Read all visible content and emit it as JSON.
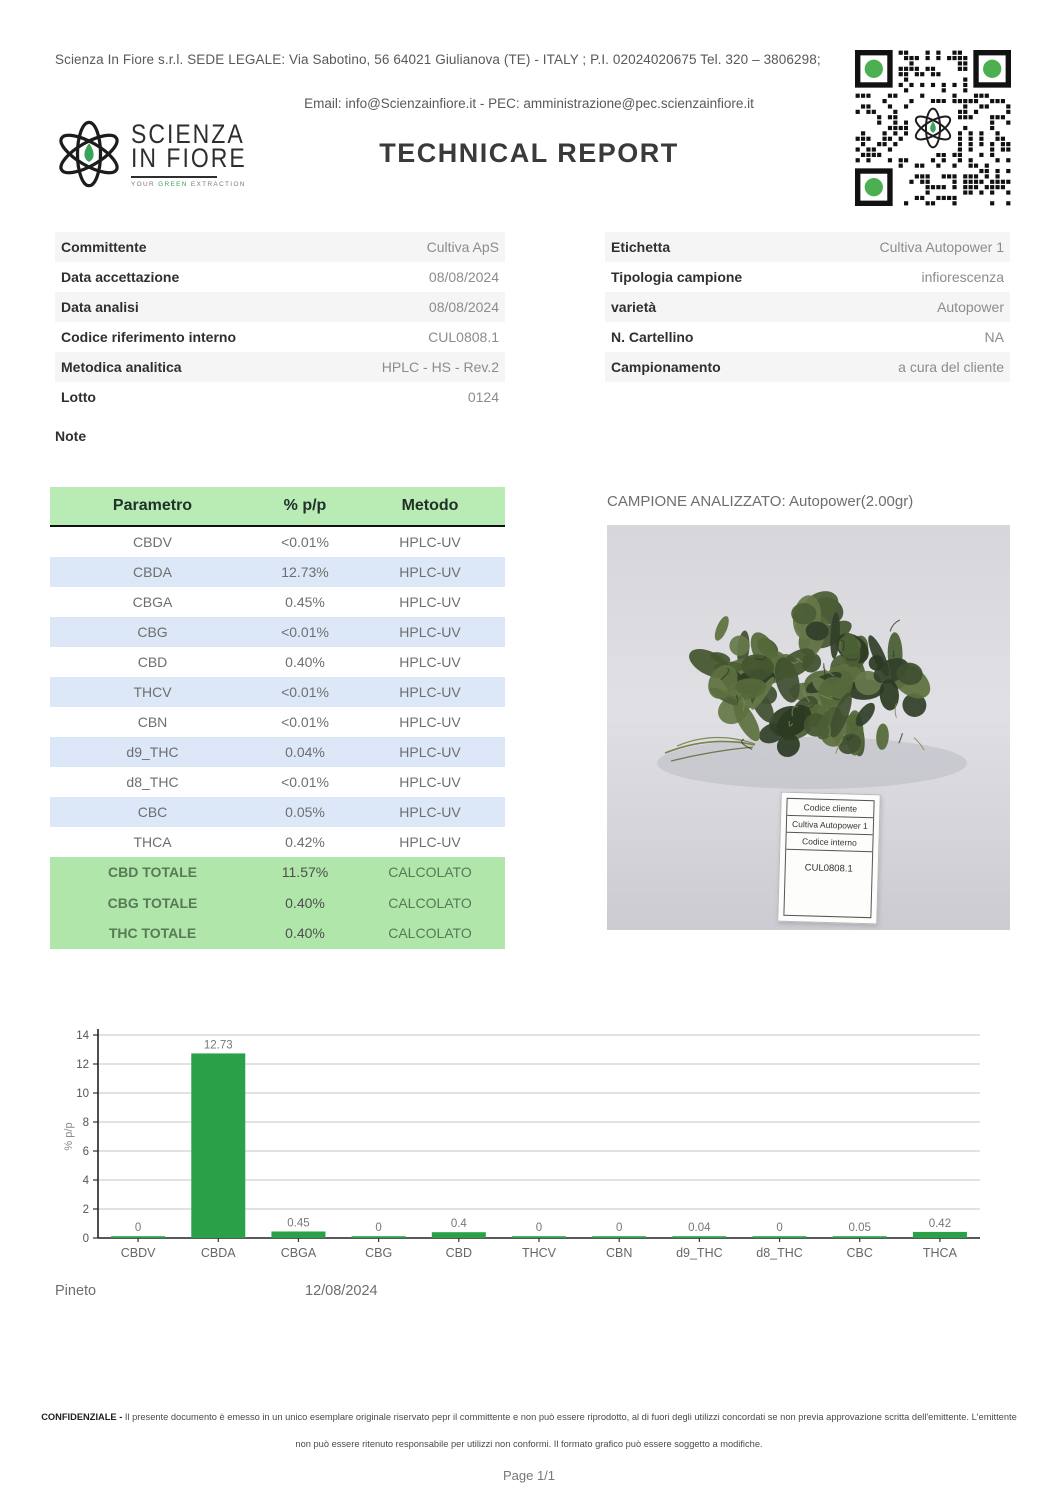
{
  "header": {
    "address": "Scienza In Fiore s.r.l. SEDE LEGALE: Via Sabotino, 56 64021 Giulianova (TE) - ITALY ; P.I. 02024020675 Tel. 320 – 3806298;",
    "email_line": "Email: info@Scienzainfiore.it - PEC: amministrazione@pec.scienzainfiore.it",
    "title": "TECHNICAL REPORT",
    "logo": {
      "line1": "SCIENZA",
      "line2": "IN FIORE",
      "tagline_pre": "YOUR ",
      "tagline_green": "GREEN",
      "tagline_post": " EXTRACTION"
    }
  },
  "info_left": [
    {
      "label": "Committente",
      "value": "Cultiva ApS"
    },
    {
      "label": "Data accettazione",
      "value": "08/08/2024"
    },
    {
      "label": "Data analisi",
      "value": "08/08/2024"
    },
    {
      "label": "Codice riferimento interno",
      "value": "CUL0808.1"
    },
    {
      "label": "Metodica analitica",
      "value": "HPLC - HS - Rev.2"
    },
    {
      "label": "Lotto",
      "value": "0124"
    }
  ],
  "info_right": [
    {
      "label": "Etichetta",
      "value": "Cultiva Autopower 1"
    },
    {
      "label": "Tipologia campione",
      "value": "infiorescenza"
    },
    {
      "label": "varietà",
      "value": "Autopower"
    },
    {
      "label": "N. Cartellino",
      "value": "NA"
    },
    {
      "label": "Campionamento",
      "value": "a cura del cliente"
    }
  ],
  "note_label": "Note",
  "results_table": {
    "headers": [
      "Parametro",
      "% p/p",
      "Metodo"
    ],
    "rows": [
      {
        "param": "CBDV",
        "value": "<0.01%",
        "method": "HPLC-UV"
      },
      {
        "param": "CBDA",
        "value": "12.73%",
        "method": "HPLC-UV"
      },
      {
        "param": "CBGA",
        "value": "0.45%",
        "method": "HPLC-UV"
      },
      {
        "param": "CBG",
        "value": "<0.01%",
        "method": "HPLC-UV"
      },
      {
        "param": "CBD",
        "value": "0.40%",
        "method": "HPLC-UV"
      },
      {
        "param": "THCV",
        "value": "<0.01%",
        "method": "HPLC-UV"
      },
      {
        "param": "CBN",
        "value": "<0.01%",
        "method": "HPLC-UV"
      },
      {
        "param": "d9_THC",
        "value": "0.04%",
        "method": "HPLC-UV"
      },
      {
        "param": "d8_THC",
        "value": "<0.01%",
        "method": "HPLC-UV"
      },
      {
        "param": "CBC",
        "value": "0.05%",
        "method": "HPLC-UV"
      },
      {
        "param": "THCA",
        "value": "0.42%",
        "method": "HPLC-UV"
      }
    ],
    "totals": [
      {
        "param": "CBD TOTALE",
        "value": "11.57%",
        "method": "CALCOLATO"
      },
      {
        "param": "CBG TOTALE",
        "value": "0.40%",
        "method": "CALCOLATO"
      },
      {
        "param": "THC TOTALE",
        "value": "0.40%",
        "method": "CALCOLATO"
      }
    ]
  },
  "sample": {
    "caption": "CAMPIONE ANALIZZATO: Autopower(2.00gr)",
    "label_card": {
      "row1": "Codice cliente",
      "row2": "Cultiva Autopower 1",
      "row3": "Codice interno",
      "row4": "CUL0808.1"
    }
  },
  "chart_data": {
    "type": "bar",
    "categories": [
      "CBDV",
      "CBDA",
      "CBGA",
      "CBG",
      "CBD",
      "THCV",
      "CBN",
      "d9_THC",
      "d8_THC",
      "CBC",
      "THCA"
    ],
    "values": [
      0,
      12.73,
      0.45,
      0,
      0.4,
      0,
      0,
      0.04,
      0,
      0.05,
      0.42
    ],
    "bar_labels": [
      "0",
      "12.73",
      "0.45",
      "0",
      "0.4",
      "0",
      "0",
      "0.04",
      "0",
      "0.05",
      "0.42"
    ],
    "title": "",
    "xlabel": "",
    "ylabel": "% p/p",
    "ylim": [
      0,
      14
    ],
    "ytick_step": 2,
    "grid": true,
    "legend": false,
    "bar_color": "#2aa148"
  },
  "footer": {
    "place": "Pineto",
    "date": "12/08/2024",
    "confidential_bold": "CONFIDENZIALE - ",
    "confidential_text": "Il presente documento è emesso in un unico esemplare originale riservato pepr il committente e non può essere riprodotto, al di fuori degli utilizzi concordati se non previa approvazione scritta dell'emittente. L'emittente non può essere ritenuto responsabile per utilizzi non conformi. Il formato grafico può essere soggetto a modifiche.",
    "page": "Page 1/1"
  },
  "colors": {
    "accent_green": "#2aa148",
    "table_header_green": "#b9ecb4",
    "table_total_green": "#b0e6aa",
    "table_row_blue": "#dce8f8",
    "qr_dot_green": "#4caf50"
  }
}
